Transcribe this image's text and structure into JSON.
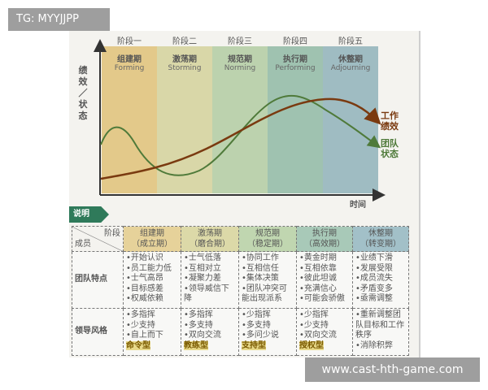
{
  "stages": [
    {
      "num": "阶段一",
      "cn": "组建期",
      "en": "Forming",
      "alt": "（成立期）",
      "color": "#e3c98a",
      "hdcolor": "#e6d29a",
      "team": [
        "•开始认识",
        "•员工能力低",
        "•士气高昂",
        "•目标感差",
        "•权威依赖"
      ],
      "lead": [
        "•多指挥",
        "•少支持",
        "•自上而下"
      ],
      "style": "命令型"
    },
    {
      "num": "阶段二",
      "cn": "激荡期",
      "en": "Storming",
      "alt": "（磨合期）",
      "color": "#d9d7a8",
      "hdcolor": "#dcd9a8",
      "team": [
        "•士气低落",
        "•互相对立",
        "•凝聚力差",
        "•领导威信下降"
      ],
      "lead": [
        "•多指挥",
        "•多支持",
        "•双向交流"
      ],
      "style": "教练型"
    },
    {
      "num": "阶段三",
      "cn": "规范期",
      "en": "Norming",
      "alt": "（稳定期）",
      "color": "#bcd2ae",
      "hdcolor": "#c0d6b0",
      "team": [
        "•协同工作",
        "•互相信任",
        "•集体决策",
        "•团队冲突可能出现派系"
      ],
      "lead": [
        "•少指挥",
        "•多支持",
        "•多问少说"
      ],
      "style": "支持型"
    },
    {
      "num": "阶段四",
      "cn": "执行期",
      "en": "Performing",
      "alt": "（高效期）",
      "color": "#9fc2b0",
      "hdcolor": "#a8c9b8",
      "team": [
        "•黄金时期",
        "•互相依靠",
        "•彼此坦诚",
        "•充满信心",
        "•可能会骄傲"
      ],
      "lead": [
        "•少指挥",
        "•少支持",
        "•双向交流"
      ],
      "style": "授权型"
    },
    {
      "num": "阶段五",
      "cn": "休整期",
      "en": "Adjourning",
      "alt": "（转变期）",
      "color": "#9fbcc2",
      "hdcolor": "#a2c0c8",
      "team": [
        "•业绩下滑",
        "•发展受限",
        "•成员流失",
        "•矛盾变多",
        "•亟需调整"
      ],
      "lead": [
        "•重新调整团队目标和工作秩序",
        "•消除积弊"
      ],
      "style": ""
    }
  ],
  "y_axis_label": "绩效／状态",
  "x_axis_label": "时间",
  "legend": {
    "performance": "工作绩效",
    "team_state": "团队状态",
    "performance_color": "#7a3a10",
    "team_color": "#4f7a3a"
  },
  "section_tag": "说明",
  "table": {
    "corner_top": "阶段",
    "corner_bottom": "成员",
    "row1": "团队特点",
    "row2": "领导风格"
  },
  "overlays": {
    "top_left": "TG: MYYJJPP",
    "bottom_right": "www.cast-hth-game.com"
  }
}
